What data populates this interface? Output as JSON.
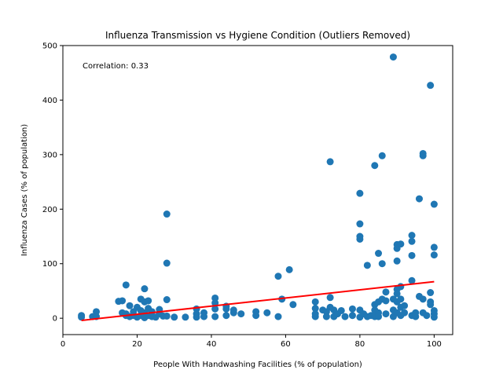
{
  "chart_data": {
    "type": "scatter",
    "title": "Influenza Transmission vs Hygiene Condition (Outliers Removed)",
    "xlabel": "People With Handwashing Facilities (% of population)",
    "ylabel": "Influenza Cases (% of population)",
    "xlim": [
      0,
      105
    ],
    "ylim": [
      -30,
      500
    ],
    "xticks": [
      0,
      20,
      40,
      60,
      80,
      100
    ],
    "yticks": [
      0,
      100,
      200,
      300,
      400,
      500
    ],
    "grid": false,
    "annotation": "Correlation: 0.33",
    "colors": {
      "points": "#1f77b4",
      "trendline": "#ff0000"
    },
    "trendline": {
      "x": [
        5,
        100
      ],
      "y": [
        -4,
        67
      ]
    },
    "series": [
      {
        "points": [
          [
            5,
            5
          ],
          [
            5,
            2
          ],
          [
            8,
            3
          ],
          [
            9,
            12
          ],
          [
            9,
            3
          ],
          [
            15,
            31
          ],
          [
            16,
            32
          ],
          [
            16,
            10
          ],
          [
            17,
            8
          ],
          [
            17,
            61
          ],
          [
            17,
            5
          ],
          [
            18,
            23
          ],
          [
            18,
            3
          ],
          [
            19,
            12
          ],
          [
            19,
            5
          ],
          [
            20,
            20
          ],
          [
            20,
            2
          ],
          [
            21,
            35
          ],
          [
            21,
            14
          ],
          [
            21,
            5
          ],
          [
            22,
            54
          ],
          [
            22,
            30
          ],
          [
            22,
            10
          ],
          [
            22,
            1
          ],
          [
            23,
            32
          ],
          [
            23,
            18
          ],
          [
            23,
            5
          ],
          [
            24,
            12
          ],
          [
            24,
            3
          ],
          [
            25,
            2
          ],
          [
            26,
            8
          ],
          [
            26,
            16
          ],
          [
            27,
            4
          ],
          [
            28,
            191
          ],
          [
            28,
            101
          ],
          [
            28,
            34
          ],
          [
            28,
            4
          ],
          [
            30,
            2
          ],
          [
            33,
            2
          ],
          [
            36,
            17
          ],
          [
            36,
            8
          ],
          [
            36,
            2
          ],
          [
            38,
            10
          ],
          [
            38,
            3
          ],
          [
            41,
            37
          ],
          [
            41,
            28
          ],
          [
            41,
            17
          ],
          [
            41,
            3
          ],
          [
            44,
            22
          ],
          [
            44,
            17
          ],
          [
            44,
            5
          ],
          [
            46,
            15
          ],
          [
            46,
            10
          ],
          [
            48,
            8
          ],
          [
            52,
            12
          ],
          [
            52,
            5
          ],
          [
            55,
            10
          ],
          [
            58,
            77
          ],
          [
            58,
            3
          ],
          [
            59,
            35
          ],
          [
            61,
            89
          ],
          [
            62,
            25
          ],
          [
            68,
            30
          ],
          [
            68,
            18
          ],
          [
            68,
            3
          ],
          [
            68,
            8
          ],
          [
            70,
            15
          ],
          [
            71,
            12
          ],
          [
            71,
            3
          ],
          [
            72,
            287
          ],
          [
            72,
            38
          ],
          [
            72,
            20
          ],
          [
            73,
            15
          ],
          [
            73,
            3
          ],
          [
            74,
            8
          ],
          [
            75,
            14
          ],
          [
            76,
            3
          ],
          [
            78,
            17
          ],
          [
            78,
            5
          ],
          [
            80,
            229
          ],
          [
            80,
            173
          ],
          [
            80,
            150
          ],
          [
            80,
            145
          ],
          [
            80,
            15
          ],
          [
            80,
            2
          ],
          [
            81,
            8
          ],
          [
            82,
            97
          ],
          [
            82,
            3
          ],
          [
            83,
            5
          ],
          [
            84,
            280
          ],
          [
            84,
            25
          ],
          [
            84,
            15
          ],
          [
            84,
            3
          ],
          [
            85,
            119
          ],
          [
            85,
            30
          ],
          [
            85,
            10
          ],
          [
            85,
            3
          ],
          [
            86,
            298
          ],
          [
            86,
            100
          ],
          [
            86,
            35
          ],
          [
            87,
            48
          ],
          [
            87,
            32
          ],
          [
            87,
            8
          ],
          [
            89,
            479
          ],
          [
            89,
            35
          ],
          [
            89,
            15
          ],
          [
            89,
            3
          ],
          [
            90,
            135
          ],
          [
            90,
            128
          ],
          [
            90,
            105
          ],
          [
            90,
            53
          ],
          [
            90,
            45
          ],
          [
            90,
            30
          ],
          [
            90,
            10
          ],
          [
            91,
            136
          ],
          [
            91,
            58
          ],
          [
            91,
            35
          ],
          [
            91,
            20
          ],
          [
            91,
            5
          ],
          [
            92,
            23
          ],
          [
            92,
            10
          ],
          [
            94,
            152
          ],
          [
            94,
            141
          ],
          [
            94,
            115
          ],
          [
            94,
            69
          ],
          [
            94,
            5
          ],
          [
            95,
            10
          ],
          [
            95,
            3
          ],
          [
            96,
            219
          ],
          [
            96,
            40
          ],
          [
            97,
            302
          ],
          [
            97,
            298
          ],
          [
            97,
            35
          ],
          [
            97,
            10
          ],
          [
            98,
            5
          ],
          [
            99,
            427
          ],
          [
            99,
            47
          ],
          [
            99,
            30
          ],
          [
            99,
            25
          ],
          [
            100,
            209
          ],
          [
            100,
            130
          ],
          [
            100,
            116
          ],
          [
            100,
            14
          ],
          [
            100,
            8
          ],
          [
            100,
            2
          ]
        ]
      }
    ]
  }
}
